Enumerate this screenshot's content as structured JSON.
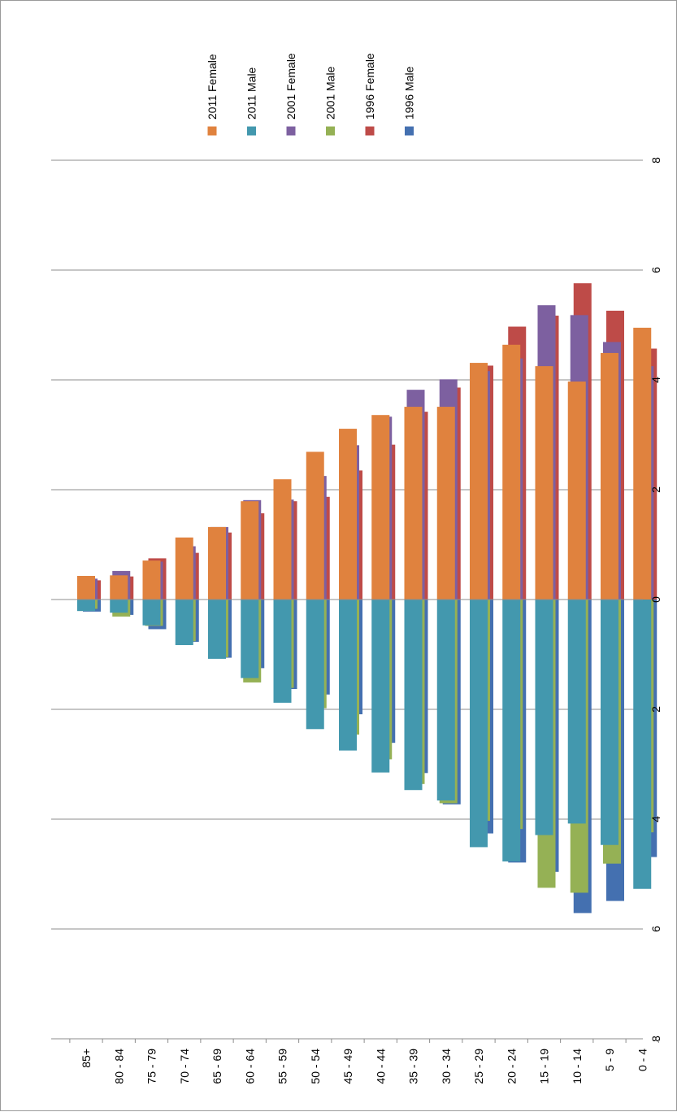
{
  "chart_data": {
    "type": "bar",
    "orientation": "horizontal-bars-in-rotated-view",
    "categories": [
      "85+",
      "80 - 84",
      "75 - 79",
      "70 - 74",
      "65 - 69",
      "60 - 64",
      "55 - 59",
      "50 - 54",
      "45 - 49",
      "40 - 44",
      "35 - 39",
      "30 - 34",
      "25 - 29",
      "20 - 24",
      "15 - 19",
      "10 - 14",
      "5 - 9",
      "0 - 4"
    ],
    "ylim": [
      -8,
      8
    ],
    "ticks": [
      8,
      6,
      4,
      2,
      0,
      2,
      4,
      6,
      8
    ],
    "tick_values": [
      -8,
      -6,
      -4,
      -2,
      0,
      2,
      4,
      6,
      8
    ],
    "grid": true,
    "legend_position": "top",
    "series": [
      {
        "name": "1996 Female",
        "color": "#be4b48",
        "side": "female",
        "values": [
          0.35,
          0.42,
          0.75,
          0.85,
          1.22,
          1.57,
          1.79,
          1.87,
          2.35,
          2.82,
          3.42,
          3.86,
          4.26,
          4.97,
          5.17,
          5.76,
          5.26,
          4.57
        ]
      },
      {
        "name": "2001 Female",
        "color": "#7d60a0",
        "side": "female",
        "values": [
          0.38,
          0.52,
          0.69,
          0.97,
          1.32,
          1.81,
          1.82,
          2.25,
          2.81,
          3.33,
          3.82,
          4.01,
          4.16,
          4.39,
          5.36,
          5.18,
          4.69,
          4.25
        ]
      },
      {
        "name": "2011 Female",
        "color": "#e0823e",
        "side": "female",
        "values": [
          0.43,
          0.44,
          0.71,
          1.13,
          1.32,
          1.79,
          2.19,
          2.69,
          3.11,
          3.36,
          3.51,
          3.51,
          4.31,
          4.64,
          4.25,
          3.97,
          4.49,
          4.95
        ]
      },
      {
        "name": "1996 Male",
        "color": "#4470b0",
        "side": "male",
        "values": [
          0.22,
          0.28,
          0.54,
          0.77,
          1.06,
          1.25,
          1.63,
          1.73,
          2.09,
          2.61,
          3.16,
          3.73,
          4.26,
          4.79,
          4.96,
          5.71,
          5.49,
          4.69
        ]
      },
      {
        "name": "2001 Male",
        "color": "#95b155",
        "side": "male",
        "values": [
          0.17,
          0.31,
          0.48,
          0.76,
          1.05,
          1.51,
          1.61,
          1.98,
          2.46,
          2.91,
          3.36,
          3.71,
          4.03,
          4.18,
          5.25,
          5.34,
          4.81,
          4.24
        ]
      },
      {
        "name": "2011 Male",
        "color": "#4398ae",
        "side": "male",
        "values": [
          0.21,
          0.24,
          0.47,
          0.83,
          1.08,
          1.43,
          1.88,
          2.36,
          2.75,
          3.15,
          3.47,
          3.66,
          4.51,
          4.77,
          4.29,
          4.08,
          4.47,
          5.27
        ]
      }
    ],
    "legend_order": [
      "2011 Female",
      "2011 Male",
      "2001 Female",
      "2001 Male",
      "1996 Female",
      "1996 Male"
    ]
  }
}
